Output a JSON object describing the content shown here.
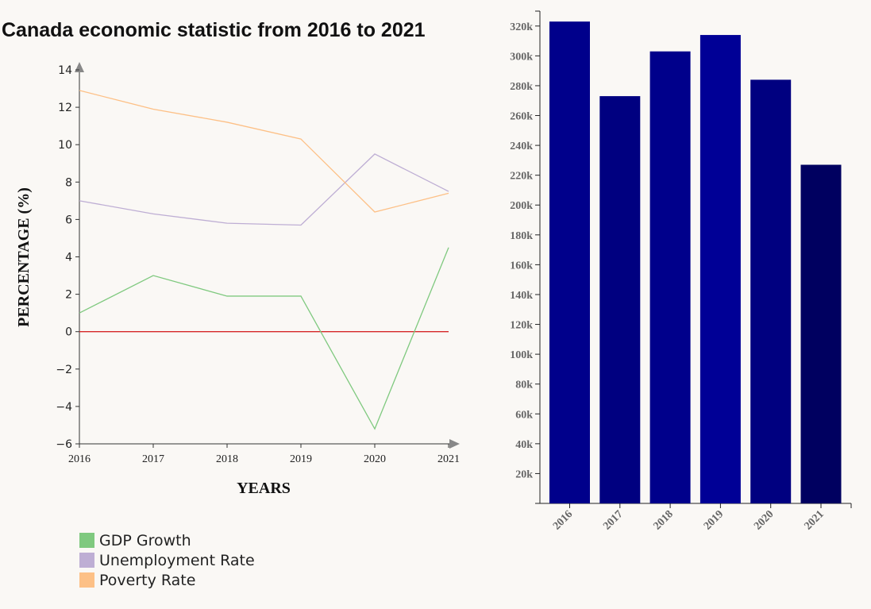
{
  "title": "Canada economic statistic from 2016 to 2021",
  "chart_data": [
    {
      "type": "line",
      "xlabel": "YEARS",
      "ylabel": "PERCENTAGE (%)",
      "x": [
        2016,
        2017,
        2018,
        2019,
        2020,
        2021
      ],
      "ylim": [
        -6,
        14
      ],
      "yticks": [
        -6,
        -4,
        -2,
        0,
        2,
        4,
        6,
        8,
        10,
        12,
        14
      ],
      "zero_line_color": "#d62728",
      "series": [
        {
          "name": "GDP Growth",
          "color": "#7fc97f",
          "values": [
            1.0,
            3.0,
            1.9,
            1.9,
            -5.2,
            4.5
          ]
        },
        {
          "name": "Unemployment Rate",
          "color": "#beaed4",
          "values": [
            7.0,
            6.3,
            5.8,
            5.7,
            9.5,
            7.5
          ]
        },
        {
          "name": "Poverty Rate",
          "color": "#fdc086",
          "values": [
            12.9,
            11.9,
            11.2,
            10.3,
            6.4,
            7.4
          ]
        }
      ]
    },
    {
      "type": "bar",
      "categories": [
        "2016",
        "2017",
        "2018",
        "2019",
        "2020",
        "2021"
      ],
      "values": [
        323000,
        273000,
        303000,
        314000,
        284000,
        227000
      ],
      "colors": [
        "#00008b",
        "#000080",
        "#00008b",
        "#000096",
        "#000080",
        "#000060"
      ],
      "ylim": [
        0,
        330000
      ],
      "yticks": [
        "20k",
        "40k",
        "60k",
        "80k",
        "100k",
        "120k",
        "140k",
        "160k",
        "180k",
        "200k",
        "220k",
        "240k",
        "260k",
        "280k",
        "300k",
        "320k"
      ]
    }
  ],
  "legend": [
    {
      "label": "GDP Growth",
      "color": "#7fc97f"
    },
    {
      "label": "Unemployment Rate",
      "color": "#beaed4"
    },
    {
      "label": "Poverty Rate",
      "color": "#fdc086"
    }
  ]
}
